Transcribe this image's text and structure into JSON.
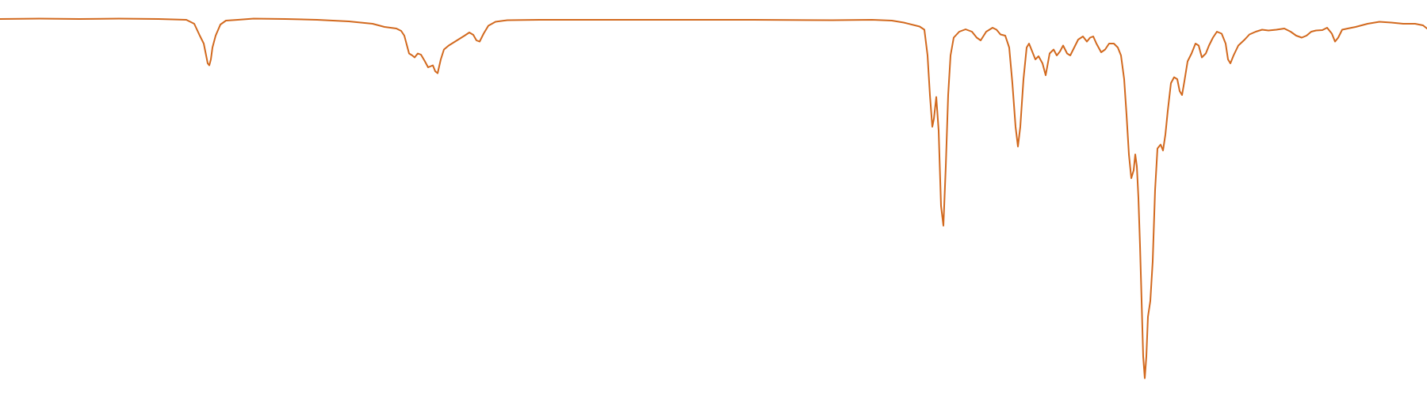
{
  "chart_data": {
    "type": "line",
    "title": "",
    "xlabel": "",
    "ylabel": "",
    "grid": false,
    "axes_visible": false,
    "legend": "none",
    "xlim": [
      0,
      1800
    ],
    "ylim": [
      0,
      100
    ],
    "series": [
      {
        "color": "#d2691e",
        "points": [
          [
            0,
            95.2
          ],
          [
            50,
            95.3
          ],
          [
            100,
            95.2
          ],
          [
            150,
            95.3
          ],
          [
            200,
            95.2
          ],
          [
            235,
            95.0
          ],
          [
            245,
            94.0
          ],
          [
            252,
            91.0
          ],
          [
            257,
            89.0
          ],
          [
            260,
            86.0
          ],
          [
            262,
            84.0
          ],
          [
            264,
            83.5
          ],
          [
            266,
            85.0
          ],
          [
            268,
            88.0
          ],
          [
            272,
            91.0
          ],
          [
            278,
            93.8
          ],
          [
            285,
            94.8
          ],
          [
            300,
            95.0
          ],
          [
            320,
            95.3
          ],
          [
            360,
            95.2
          ],
          [
            400,
            95.0
          ],
          [
            440,
            94.6
          ],
          [
            470,
            94.0
          ],
          [
            485,
            93.2
          ],
          [
            500,
            92.8
          ],
          [
            506,
            92.2
          ],
          [
            510,
            91.0
          ],
          [
            514,
            88.0
          ],
          [
            516,
            86.5
          ],
          [
            520,
            86.0
          ],
          [
            523,
            85.5
          ],
          [
            527,
            86.5
          ],
          [
            531,
            86.2
          ],
          [
            536,
            84.5
          ],
          [
            540,
            83.0
          ],
          [
            546,
            83.5
          ],
          [
            549,
            82.0
          ],
          [
            552,
            81.5
          ],
          [
            556,
            85.0
          ],
          [
            560,
            87.5
          ],
          [
            566,
            88.5
          ],
          [
            570,
            89.0
          ],
          [
            578,
            90.0
          ],
          [
            586,
            91.0
          ],
          [
            592,
            91.8
          ],
          [
            597,
            91.2
          ],
          [
            601,
            89.8
          ],
          [
            605,
            89.5
          ],
          [
            610,
            91.5
          ],
          [
            616,
            93.5
          ],
          [
            625,
            94.5
          ],
          [
            640,
            94.9
          ],
          [
            680,
            95.0
          ],
          [
            750,
            95.0
          ],
          [
            850,
            95.0
          ],
          [
            950,
            95.0
          ],
          [
            1050,
            94.9
          ],
          [
            1100,
            95.0
          ],
          [
            1125,
            94.8
          ],
          [
            1140,
            94.3
          ],
          [
            1160,
            93.3
          ],
          [
            1166,
            92.5
          ],
          [
            1170,
            86.0
          ],
          [
            1173,
            76.0
          ],
          [
            1176,
            68.0
          ],
          [
            1178,
            70.0
          ],
          [
            1181,
            75.5
          ],
          [
            1184,
            67.0
          ],
          [
            1187,
            48.0
          ],
          [
            1190,
            43.0
          ],
          [
            1193,
            58.0
          ],
          [
            1196,
            76.0
          ],
          [
            1199,
            86.0
          ],
          [
            1203,
            90.5
          ],
          [
            1210,
            92.0
          ],
          [
            1218,
            92.6
          ],
          [
            1226,
            92.0
          ],
          [
            1232,
            90.5
          ],
          [
            1237,
            89.8
          ],
          [
            1244,
            92.0
          ],
          [
            1252,
            93.0
          ],
          [
            1257,
            92.5
          ],
          [
            1262,
            91.3
          ],
          [
            1268,
            91.0
          ],
          [
            1273,
            88.0
          ],
          [
            1277,
            79.0
          ],
          [
            1281,
            68.0
          ],
          [
            1284,
            63.0
          ],
          [
            1287,
            68.0
          ],
          [
            1291,
            80.0
          ],
          [
            1295,
            88.0
          ],
          [
            1298,
            89.0
          ],
          [
            1302,
            87.0
          ],
          [
            1306,
            85.0
          ],
          [
            1310,
            85.8
          ],
          [
            1315,
            84.0
          ],
          [
            1319,
            81.0
          ],
          [
            1324,
            86.5
          ],
          [
            1329,
            87.5
          ],
          [
            1333,
            86.0
          ],
          [
            1337,
            87.0
          ],
          [
            1341,
            88.5
          ],
          [
            1346,
            86.5
          ],
          [
            1350,
            86.0
          ],
          [
            1355,
            88.0
          ],
          [
            1360,
            90.0
          ],
          [
            1366,
            90.8
          ],
          [
            1371,
            89.5
          ],
          [
            1375,
            90.5
          ],
          [
            1379,
            90.8
          ],
          [
            1383,
            89.0
          ],
          [
            1389,
            86.8
          ],
          [
            1394,
            87.5
          ],
          [
            1399,
            89.0
          ],
          [
            1405,
            89.0
          ],
          [
            1410,
            88.0
          ],
          [
            1414,
            86.0
          ],
          [
            1418,
            80.0
          ],
          [
            1421,
            71.0
          ],
          [
            1424,
            61.0
          ],
          [
            1427,
            55.0
          ],
          [
            1430,
            57.0
          ],
          [
            1432,
            61.0
          ],
          [
            1434,
            58.0
          ],
          [
            1436,
            50.0
          ],
          [
            1438,
            38.0
          ],
          [
            1440,
            24.0
          ],
          [
            1442,
            10.0
          ],
          [
            1444,
            4.5
          ],
          [
            1446,
            10.0
          ],
          [
            1448,
            20.0
          ],
          [
            1451,
            24.0
          ],
          [
            1454,
            34.0
          ],
          [
            1457,
            52.0
          ],
          [
            1460,
            62.5
          ],
          [
            1464,
            63.5
          ],
          [
            1467,
            62.0
          ],
          [
            1470,
            66.0
          ],
          [
            1473,
            72.0
          ],
          [
            1477,
            79.0
          ],
          [
            1481,
            80.5
          ],
          [
            1485,
            80.0
          ],
          [
            1488,
            77.0
          ],
          [
            1491,
            76.0
          ],
          [
            1494,
            79.5
          ],
          [
            1498,
            84.5
          ],
          [
            1503,
            86.5
          ],
          [
            1508,
            89.0
          ],
          [
            1512,
            88.5
          ],
          [
            1516,
            85.5
          ],
          [
            1521,
            86.5
          ],
          [
            1525,
            88.5
          ],
          [
            1530,
            90.5
          ],
          [
            1535,
            92.0
          ],
          [
            1541,
            91.5
          ],
          [
            1546,
            89.0
          ],
          [
            1549,
            85.0
          ],
          [
            1552,
            84.0
          ],
          [
            1556,
            86.0
          ],
          [
            1562,
            88.5
          ],
          [
            1570,
            90.0
          ],
          [
            1576,
            91.3
          ],
          [
            1584,
            92.0
          ],
          [
            1592,
            92.5
          ],
          [
            1600,
            92.3
          ],
          [
            1610,
            92.5
          ],
          [
            1620,
            92.8
          ],
          [
            1628,
            92.0
          ],
          [
            1635,
            91.0
          ],
          [
            1642,
            90.5
          ],
          [
            1648,
            91.0
          ],
          [
            1654,
            92.0
          ],
          [
            1660,
            92.3
          ],
          [
            1668,
            92.4
          ],
          [
            1674,
            93.0
          ],
          [
            1680,
            91.5
          ],
          [
            1684,
            89.5
          ],
          [
            1688,
            90.5
          ],
          [
            1693,
            92.5
          ],
          [
            1700,
            92.8
          ],
          [
            1710,
            93.2
          ],
          [
            1725,
            94.0
          ],
          [
            1740,
            94.5
          ],
          [
            1755,
            94.3
          ],
          [
            1770,
            94.0
          ],
          [
            1785,
            94.0
          ],
          [
            1795,
            93.6
          ],
          [
            1800,
            92.8
          ]
        ]
      }
    ]
  }
}
